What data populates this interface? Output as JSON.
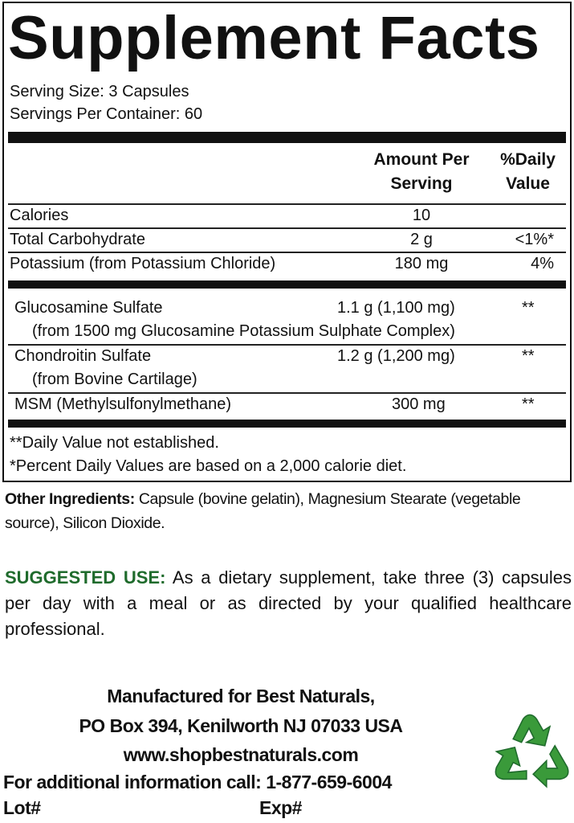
{
  "title": "Supplement Facts",
  "serving_size": "Serving Size: 3 Capsules",
  "servings_per_container": "Servings Per Container: 60",
  "header": {
    "amount_line1": "Amount Per",
    "amount_line2": "Serving",
    "dv_line1": "%Daily",
    "dv_line2": "Value"
  },
  "rows": [
    {
      "name": "Calories",
      "amount": "10",
      "dv": ""
    },
    {
      "name": "Total Carbohydrate",
      "amount": "2 g",
      "dv": "<1%*"
    },
    {
      "name": "Potassium (from Potassium Chloride)",
      "amount": "180 mg",
      "dv": "4%"
    },
    {
      "name": "Glucosamine Sulfate",
      "sub": "(from 1500 mg Glucosamine Potassium Sulphate Complex)",
      "amount": "1.1 g (1,100 mg)",
      "dv": "**"
    },
    {
      "name": "Chondroitin Sulfate",
      "sub": "(from Bovine Cartilage)",
      "amount": "1.2 g (1,200 mg)",
      "dv": "**"
    },
    {
      "name": "MSM (Methylsulfonylmethane)",
      "amount": "300 mg",
      "dv": "**"
    }
  ],
  "footnotes": [
    "**Daily Value not established.",
    "*Percent Daily Values are based on a 2,000 calorie diet."
  ],
  "other_ingredients": {
    "label": "Other Ingredients:",
    "text": " Capsule (bovine gelatin), Magnesium Stearate (vegetable source), Silicon Dioxide."
  },
  "suggested_use": {
    "label": "SUGGESTED USE:",
    "text": " As a dietary supplement, take three (3) capsules per day with a meal or as directed by your qualified healthcare professional."
  },
  "manufacturer": [
    "Manufactured for Best Naturals,",
    "PO Box 394, Kenilworth NJ 07033 USA",
    "www.shopbestnaturals.com",
    "For additional information call: 1-877-659-6004"
  ],
  "lot_label": "Lot#",
  "exp_label": "Exp#",
  "icons": {
    "recycle": "recycle-icon"
  },
  "colors": {
    "accent_green": "#1f6b2c",
    "recycle_green": "#3a9a3a"
  }
}
